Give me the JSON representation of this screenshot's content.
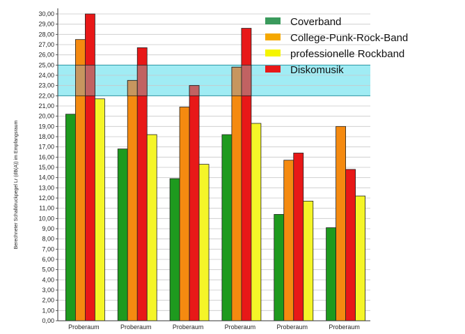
{
  "chart_data": {
    "type": "bar",
    "title": "",
    "xlabel": "",
    "ylabel": "Berechneter Schalldruckpegel Lr (dB(A)) im Empfangsraum",
    "ylim": [
      0,
      30
    ],
    "ytick_step": 1,
    "ytick_labels": [
      "0,00",
      "1,00",
      "2,00",
      "3,00",
      "4,00",
      "5,00",
      "6,00",
      "7,00",
      "8,00",
      "9,00",
      "10,00",
      "11,00",
      "12,00",
      "13,00",
      "14,00",
      "15,00",
      "16,00",
      "17,00",
      "18,00",
      "19,00",
      "20,00",
      "21,00",
      "22,00",
      "23,00",
      "24,00",
      "25,00",
      "26,00",
      "27,00",
      "28,00",
      "29,00",
      "30,00"
    ],
    "grid": true,
    "legend_position": "top-right",
    "categories": [
      "Proberaum",
      "Proberaum",
      "Proberaum",
      "Proberaum",
      "Proberaum",
      "Proberaum"
    ],
    "series": [
      {
        "name": "Coverband",
        "color": "#1e9a1e",
        "legend_color": "#3a9a5c",
        "values": [
          20.2,
          16.8,
          13.9,
          18.2,
          10.4,
          9.1
        ]
      },
      {
        "name": "College-Punk-Rock-Band",
        "color": "#f58a10",
        "legend_color": "#f5a800",
        "values": [
          27.5,
          23.5,
          20.9,
          24.8,
          15.7,
          19.0
        ]
      },
      {
        "name": "Diskomusik",
        "color": "#e81818",
        "legend_color": "#e81818",
        "values": [
          30.0,
          26.7,
          23.0,
          28.6,
          16.4,
          14.8
        ]
      },
      {
        "name": "professionelle Rockband",
        "color": "#f5f528",
        "legend_color": "#f5f500",
        "values": [
          21.7,
          18.2,
          15.3,
          19.3,
          11.7,
          12.2
        ]
      }
    ],
    "legend_order": [
      "Coverband",
      "College-Punk-Rock-Band",
      "professionelle Rockband",
      "Diskomusik"
    ],
    "highlight_band": {
      "from": 22,
      "to": 25,
      "color": "#a0ecf4"
    }
  }
}
